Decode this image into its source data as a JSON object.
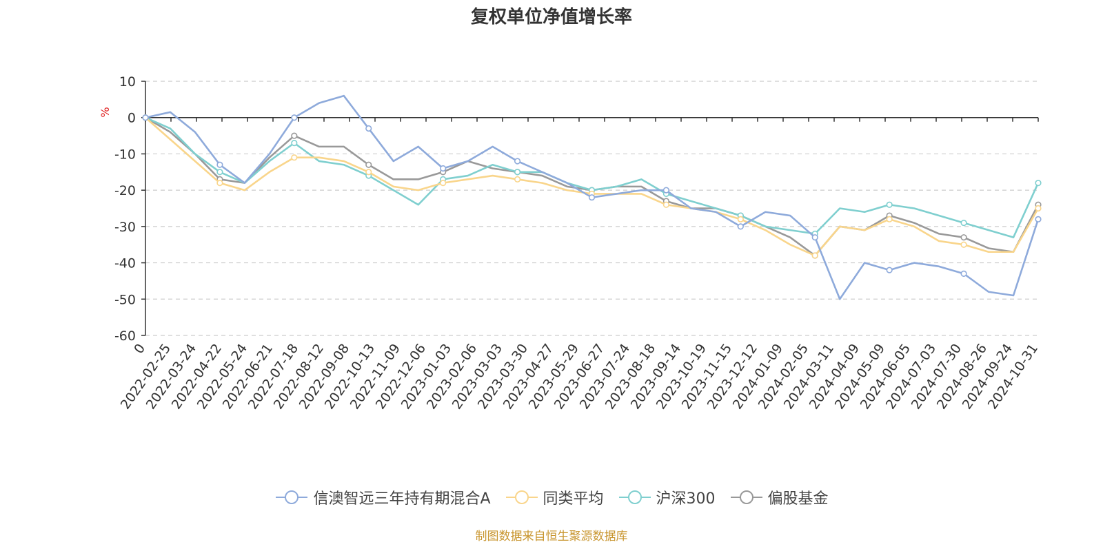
{
  "chart_data": {
    "type": "line",
    "title": "复权单位净值增长率",
    "ylabel": "%",
    "ylim": [
      -60,
      10
    ],
    "y_ticks": [
      "10",
      "0",
      "-10",
      "-20",
      "-30",
      "-40",
      "-50",
      "-60"
    ],
    "x_tick_labels": [
      "0",
      "2022-02-25",
      "2022-03-24",
      "2022-04-22",
      "2022-05-24",
      "2022-06-21",
      "2022-07-18",
      "2022-08-12",
      "2022-09-08",
      "2022-10-13",
      "2022-11-09",
      "2022-12-06",
      "2023-01-03",
      "2023-02-06",
      "2023-03-03",
      "2023-03-30",
      "2023-04-27",
      "2023-05-29",
      "2023-06-27",
      "2023-07-24",
      "2023-08-18",
      "2023-09-14",
      "2023-10-19",
      "2023-11-15",
      "2023-12-12",
      "2024-01-09",
      "2024-02-05",
      "2024-03-11",
      "2024-04-09",
      "2024-05-09",
      "2024-06-05",
      "2024-07-03",
      "2024-07-30",
      "2024-08-26",
      "2024-09-24",
      "2024-10-31"
    ],
    "grid": true,
    "legend_position": "bottom",
    "series": [
      {
        "name": "信澳智远三年持有期混合A",
        "color": "#8eaadb",
        "values": [
          0,
          1.5,
          -4,
          -13,
          -18,
          -10,
          0,
          4,
          6,
          -3,
          -12,
          -8,
          -14,
          -12,
          -8,
          -12,
          -15,
          -18,
          -22,
          -21,
          -20,
          -20,
          -25,
          -26,
          -30,
          -26,
          -27,
          -33,
          -50,
          -40,
          -42,
          -40,
          -41,
          -43,
          -48,
          -49,
          -28
        ]
      },
      {
        "name": "同类平均",
        "color": "#f9d58b",
        "values": [
          0,
          -6,
          -12,
          -18,
          -20,
          -15,
          -11,
          -11,
          -12,
          -15,
          -19,
          -20,
          -18,
          -17,
          -16,
          -17,
          -18,
          -20,
          -21,
          -21,
          -21,
          -24,
          -25,
          -26,
          -28,
          -31,
          -35,
          -38,
          -30,
          -31,
          -28,
          -30,
          -34,
          -35,
          -37,
          -37,
          -25
        ]
      },
      {
        "name": "沪深300",
        "color": "#7fcfcf",
        "values": [
          0,
          -3,
          -10,
          -15,
          -18,
          -12,
          -7,
          -12,
          -13,
          -16,
          -20,
          -24,
          -17,
          -16,
          -13,
          -15,
          -15,
          -18,
          -20,
          -19,
          -17,
          -21,
          -23,
          -25,
          -27,
          -30,
          -31,
          -32,
          -25,
          -26,
          -24,
          -25,
          -27,
          -29,
          -31,
          -33,
          -18
        ]
      },
      {
        "name": "偏股基金",
        "color": "#999999",
        "values": [
          0,
          -4,
          -10,
          -17,
          -18,
          -11,
          -5,
          -8,
          -8,
          -13,
          -17,
          -17,
          -15,
          -12,
          -14,
          -15,
          -16,
          -19,
          -20,
          -19,
          -19,
          -23,
          -25,
          -25,
          -27,
          -30,
          -33,
          -38,
          -30,
          -31,
          -27,
          -29,
          -32,
          -33,
          -36,
          -37,
          -24
        ]
      }
    ]
  },
  "legend": {
    "items": [
      "信澳智远三年持有期混合A",
      "同类平均",
      "沪深300",
      "偏股基金"
    ]
  },
  "footer": {
    "source": "制图数据来自恒生聚源数据库"
  }
}
